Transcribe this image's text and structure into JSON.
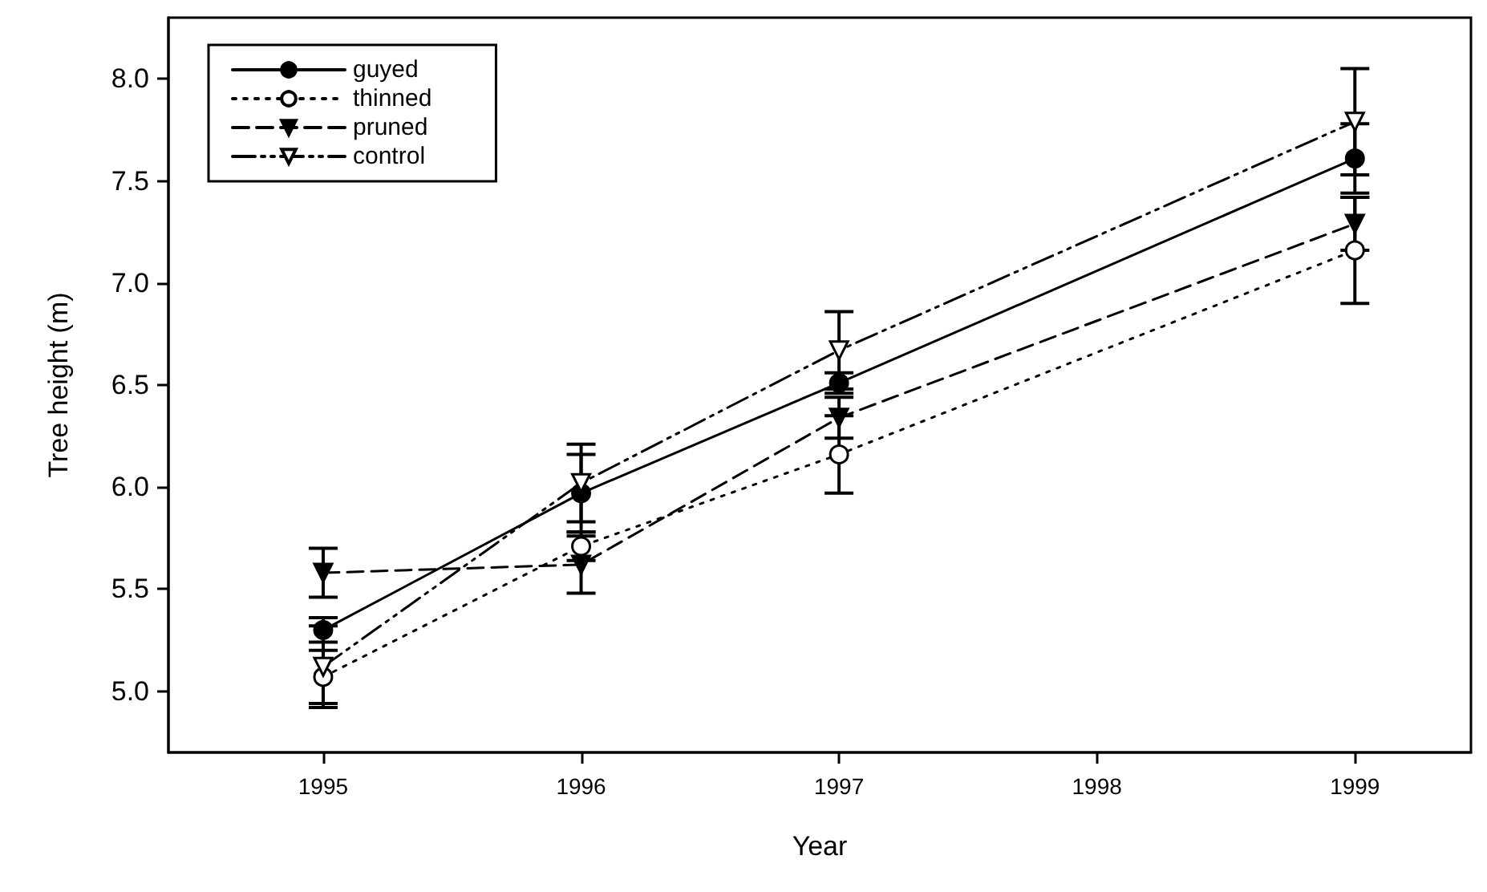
{
  "chart_data": {
    "type": "line",
    "xlabel": "Year",
    "ylabel": "Tree height (m)",
    "x": [
      1995,
      1996,
      1997,
      1999
    ],
    "series": [
      {
        "name": "guyed",
        "color": "#000000",
        "marker": "circle",
        "line_style": "solid",
        "values": [
          5.3,
          5.97,
          6.51,
          7.61
        ],
        "errors": [
          0.06,
          0.19,
          0.05,
          0.17
        ]
      },
      {
        "name": "thinned",
        "color": "#000000",
        "marker": "circle-open",
        "line_style": "dotted",
        "values": [
          5.07,
          5.71,
          6.16,
          7.16
        ],
        "errors": [
          0.13,
          0.07,
          0.19,
          0.26
        ]
      },
      {
        "name": "pruned",
        "color": "#000000",
        "marker": "triangle-down",
        "line_style": "dashed",
        "values": [
          5.58,
          5.62,
          6.34,
          7.29
        ],
        "errors": [
          0.12,
          0.14,
          0.1,
          0.13
        ]
      },
      {
        "name": "control",
        "color": "#000000",
        "marker": "triangle-down-open",
        "line_style": "dashdot",
        "values": [
          5.12,
          6.02,
          6.67,
          7.79
        ],
        "errors": [
          0.2,
          0.19,
          0.19,
          0.26
        ]
      }
    ],
    "xlim": [
      1994.4,
      1999.45
    ],
    "xticks": [
      1995,
      1996,
      1997,
      1998,
      1999
    ],
    "ylim": [
      4.7,
      8.3
    ],
    "yticks": [
      {
        "value": 5,
        "label": "5.0"
      },
      5.5,
      {
        "value": 6,
        "label": "6.0"
      },
      6.5,
      {
        "value": 7,
        "label": "7.0"
      },
      7.5,
      {
        "value": 8,
        "label": "8.0"
      }
    ],
    "grid": false,
    "legend": "top left"
  }
}
